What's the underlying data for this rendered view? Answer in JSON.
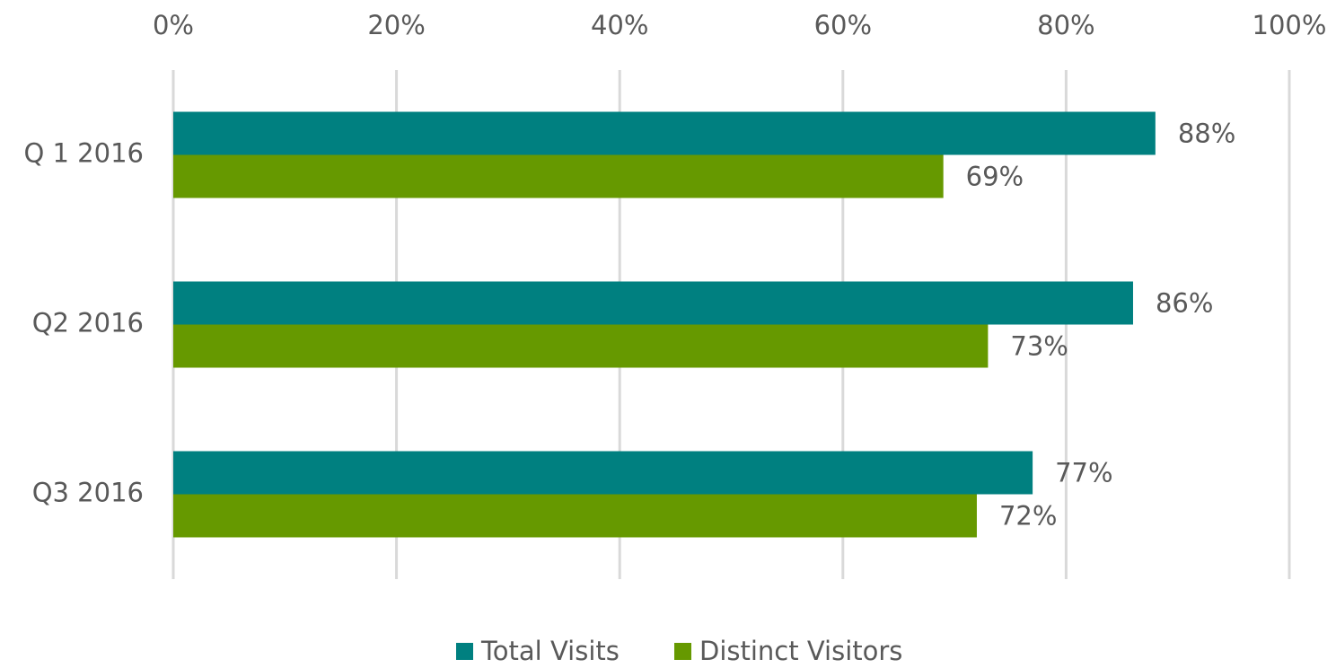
{
  "chart_data": {
    "type": "hbar",
    "categories": [
      "Q 1 2016",
      "Q2 2016",
      "Q3 2016"
    ],
    "series": [
      {
        "name": "Total Visits",
        "color": "#008080",
        "values": [
          88,
          86,
          77
        ],
        "value_labels": [
          "88%",
          "86%",
          "77%"
        ]
      },
      {
        "name": "Distinct Visitors",
        "color": "#669900",
        "values": [
          69,
          73,
          72
        ],
        "value_labels": [
          "69%",
          "73%",
          "72%"
        ]
      }
    ],
    "xlim": [
      0,
      100
    ],
    "xticks": [
      {
        "value": 0,
        "label": "0%"
      },
      {
        "value": 20,
        "label": "20%"
      },
      {
        "value": 40,
        "label": "40%"
      },
      {
        "value": 60,
        "label": "60%"
      },
      {
        "value": 80,
        "label": "80%"
      },
      {
        "value": 100,
        "label": "100%"
      }
    ],
    "grid": true,
    "legend": "bottom"
  }
}
